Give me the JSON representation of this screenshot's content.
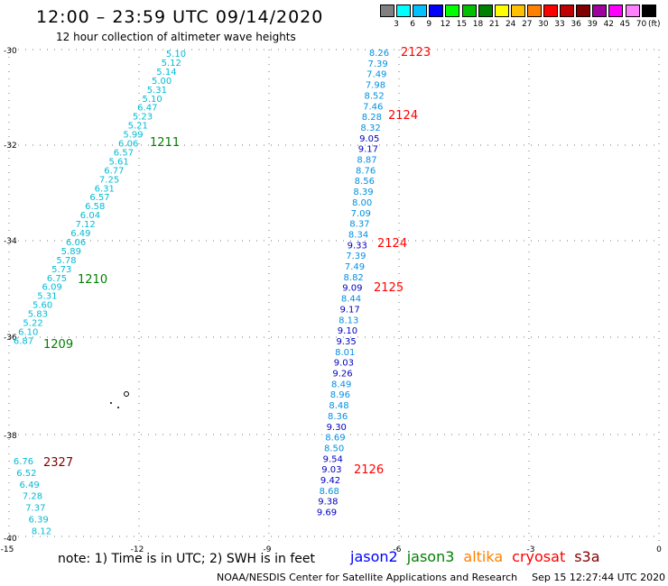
{
  "title": "12:00 – 23:59 UTC 09/14/2020",
  "subtitle": "12 hour collection of altimeter wave heights",
  "color_scale": {
    "colors": [
      "#808080",
      "#00ffff",
      "#00c0ff",
      "#0000ff",
      "#00ff00",
      "#00c000",
      "#008000",
      "#ffff00",
      "#ffc000",
      "#ff8000",
      "#ff0000",
      "#c00000",
      "#800000",
      "#a000a0",
      "#ff00ff",
      "#ff80ff",
      "#000000"
    ],
    "labels": [
      "3",
      "6",
      "9",
      "12",
      "15",
      "18",
      "21",
      "24",
      "27",
      "30",
      "33",
      "36",
      "39",
      "42",
      "45",
      "70"
    ],
    "units": "(ft)"
  },
  "axes": {
    "x_ticks": [
      "-15",
      "-12",
      "-9",
      "-6",
      "-3",
      "0"
    ],
    "y_ticks": [
      "-30",
      "-32",
      "-34",
      "-36",
      "-38",
      "-40"
    ]
  },
  "note": "note:  1) Time is in UTC;  2) SWH is in feet",
  "satellites": [
    {
      "name": "jason2",
      "color": "#0000ff"
    },
    {
      "name": "jason3",
      "color": "#008000"
    },
    {
      "name": "altika",
      "color": "#ff8000"
    },
    {
      "name": "cryosat",
      "color": "#ff0000"
    },
    {
      "name": "s3a",
      "color": "#800000"
    }
  ],
  "footer": {
    "credit": "NOAA/NESDIS Center for Satellite Applications and Research",
    "timestamp": "Sep 15 12:27:44 UTC 2020"
  },
  "tracks": {
    "west": {
      "values": [
        "5.10",
        "5.12",
        "5.14",
        "5.00",
        "5.31",
        "5.10",
        "6.47",
        "5.23",
        "5.21",
        "5.99",
        "6.06",
        "6.57",
        "5.61",
        "6.77",
        "7.25",
        "6.31",
        "6.57",
        "6.58",
        "6.04",
        "7.12",
        "6.49",
        "6.06",
        "5.89",
        "5.78",
        "5.73",
        "6.75",
        "6.09",
        "5.31",
        "5.60",
        "5.83",
        "5.22",
        "6.10",
        "6.87"
      ],
      "colors_note": "cyan"
    },
    "east": {
      "values": [
        "8.26",
        "7.39",
        "7.49",
        "7.98",
        "8.52",
        "7.46",
        "8.28",
        "8.32",
        "9.05",
        "9.17",
        "8.87",
        "8.76",
        "8.56",
        "8.39",
        "8.00",
        "7.09",
        "8.37",
        "8.34",
        "9.33",
        "7.39",
        "7.49",
        "8.82",
        "9.09",
        "8.44",
        "9.17",
        "8.13",
        "9.10",
        "9.35",
        "8.01",
        "9.03",
        "9.26",
        "8.49",
        "8.96",
        "8.48",
        "8.36",
        "9.30",
        "8.69",
        "8.50",
        "9.54",
        "9.03",
        "9.42",
        "8.68",
        "9.38",
        "9.69"
      ]
    },
    "southwest": {
      "values": [
        "6.76",
        "6.52",
        "6.49",
        "7.28",
        "7.37",
        "6.39",
        "8.12"
      ]
    }
  },
  "time_labels": [
    {
      "text": "2123",
      "satellite": "cryosat"
    },
    {
      "text": "2124",
      "satellite": "cryosat"
    },
    {
      "text": "2124",
      "satellite": "cryosat"
    },
    {
      "text": "2125",
      "satellite": "cryosat"
    },
    {
      "text": "2126",
      "satellite": "cryosat"
    },
    {
      "text": "1211",
      "satellite": "jason3"
    },
    {
      "text": "1210",
      "satellite": "jason3"
    },
    {
      "text": "1209",
      "satellite": "jason3"
    },
    {
      "text": "2327",
      "satellite": "s3a"
    }
  ]
}
